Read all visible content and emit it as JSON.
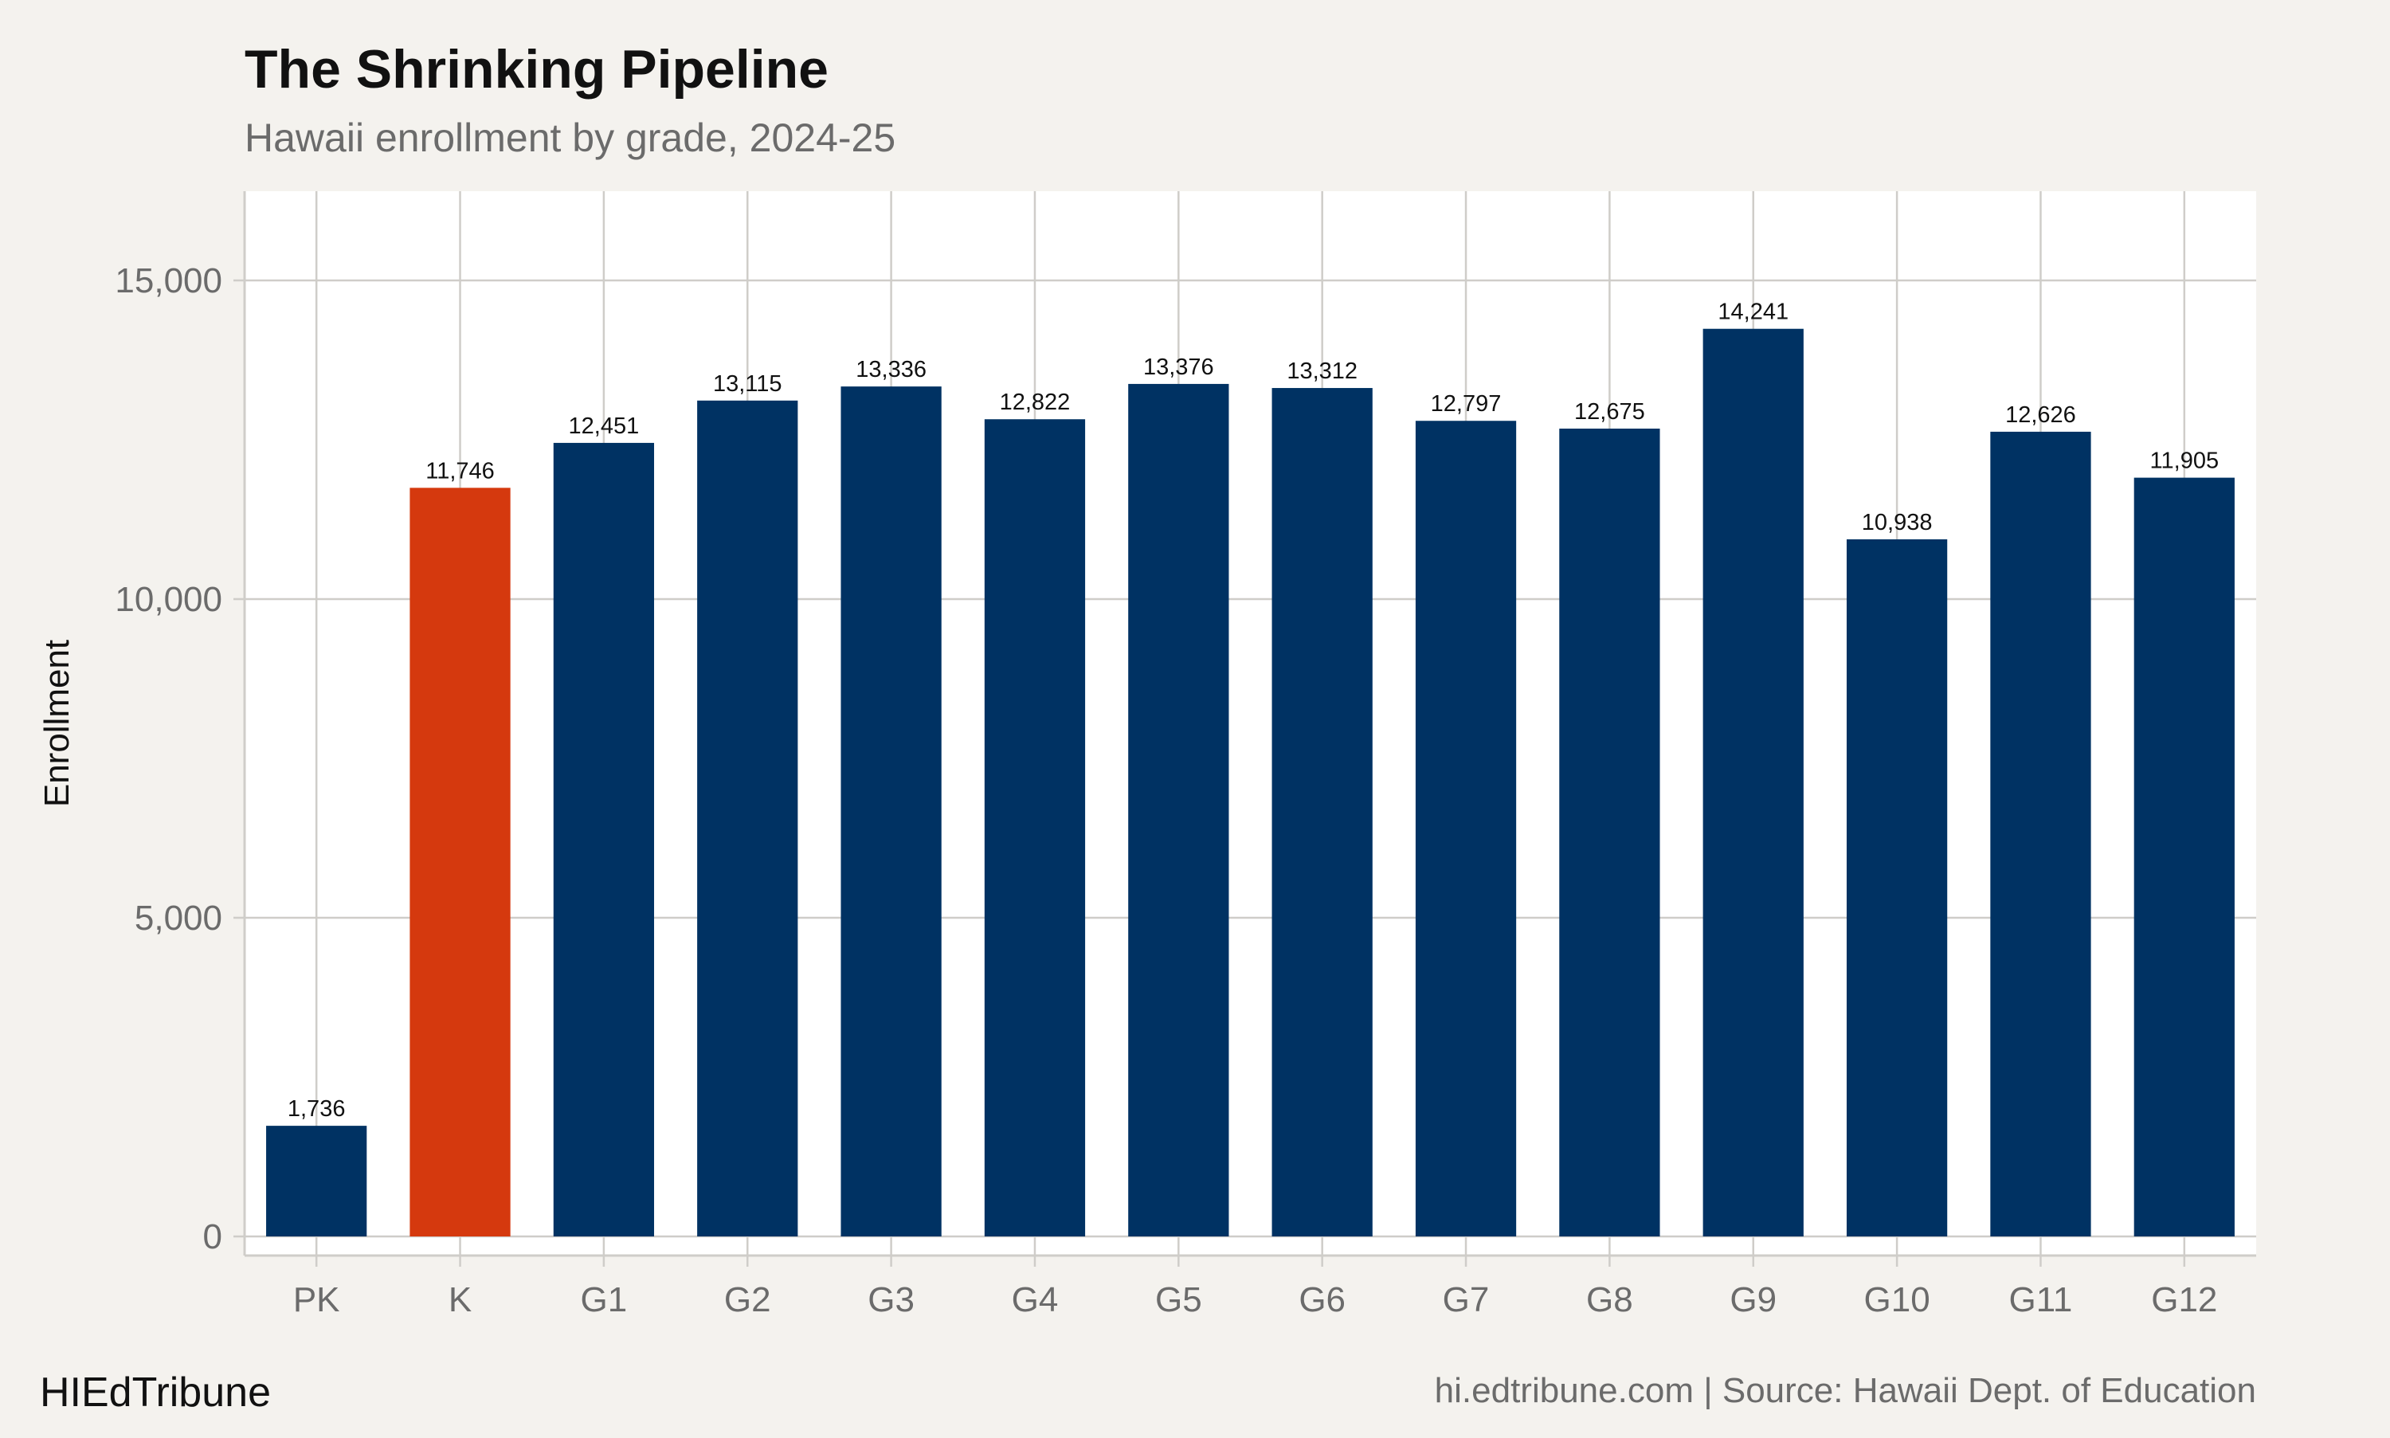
{
  "chart_data": {
    "type": "bar",
    "title": "The Shrinking Pipeline",
    "subtitle": "Hawaii enrollment by grade, 2024-25",
    "xlabel": "",
    "ylabel": "Enrollment",
    "categories": [
      "PK",
      "K",
      "G1",
      "G2",
      "G3",
      "G4",
      "G5",
      "G6",
      "G7",
      "G8",
      "G9",
      "G10",
      "G11",
      "G12"
    ],
    "values": [
      1736,
      11746,
      12451,
      13115,
      13336,
      12822,
      13376,
      13312,
      12797,
      12675,
      14241,
      10938,
      12626,
      11905
    ],
    "value_labels": [
      "1,736",
      "11,746",
      "12,451",
      "13,115",
      "13,336",
      "12,822",
      "13,376",
      "13,312",
      "12,797",
      "12,675",
      "14,241",
      "10,938",
      "12,626",
      "11,905"
    ],
    "highlight_category": "K",
    "ylim": [
      -300,
      16400
    ],
    "yticks": [
      0,
      5000,
      10000,
      15000
    ],
    "ytick_labels": [
      "0",
      "5,000",
      "10,000",
      "15,000"
    ],
    "grid": true,
    "colors": {
      "bar": "#003263",
      "highlight": "#d5390e",
      "grid": "#cfcdc9",
      "panel": "#ffffff",
      "background": "#f4f2ee"
    }
  },
  "footer": {
    "brand": "HIEdTribune",
    "source": "hi.edtribune.com | Source: Hawaii Dept. of Education"
  }
}
